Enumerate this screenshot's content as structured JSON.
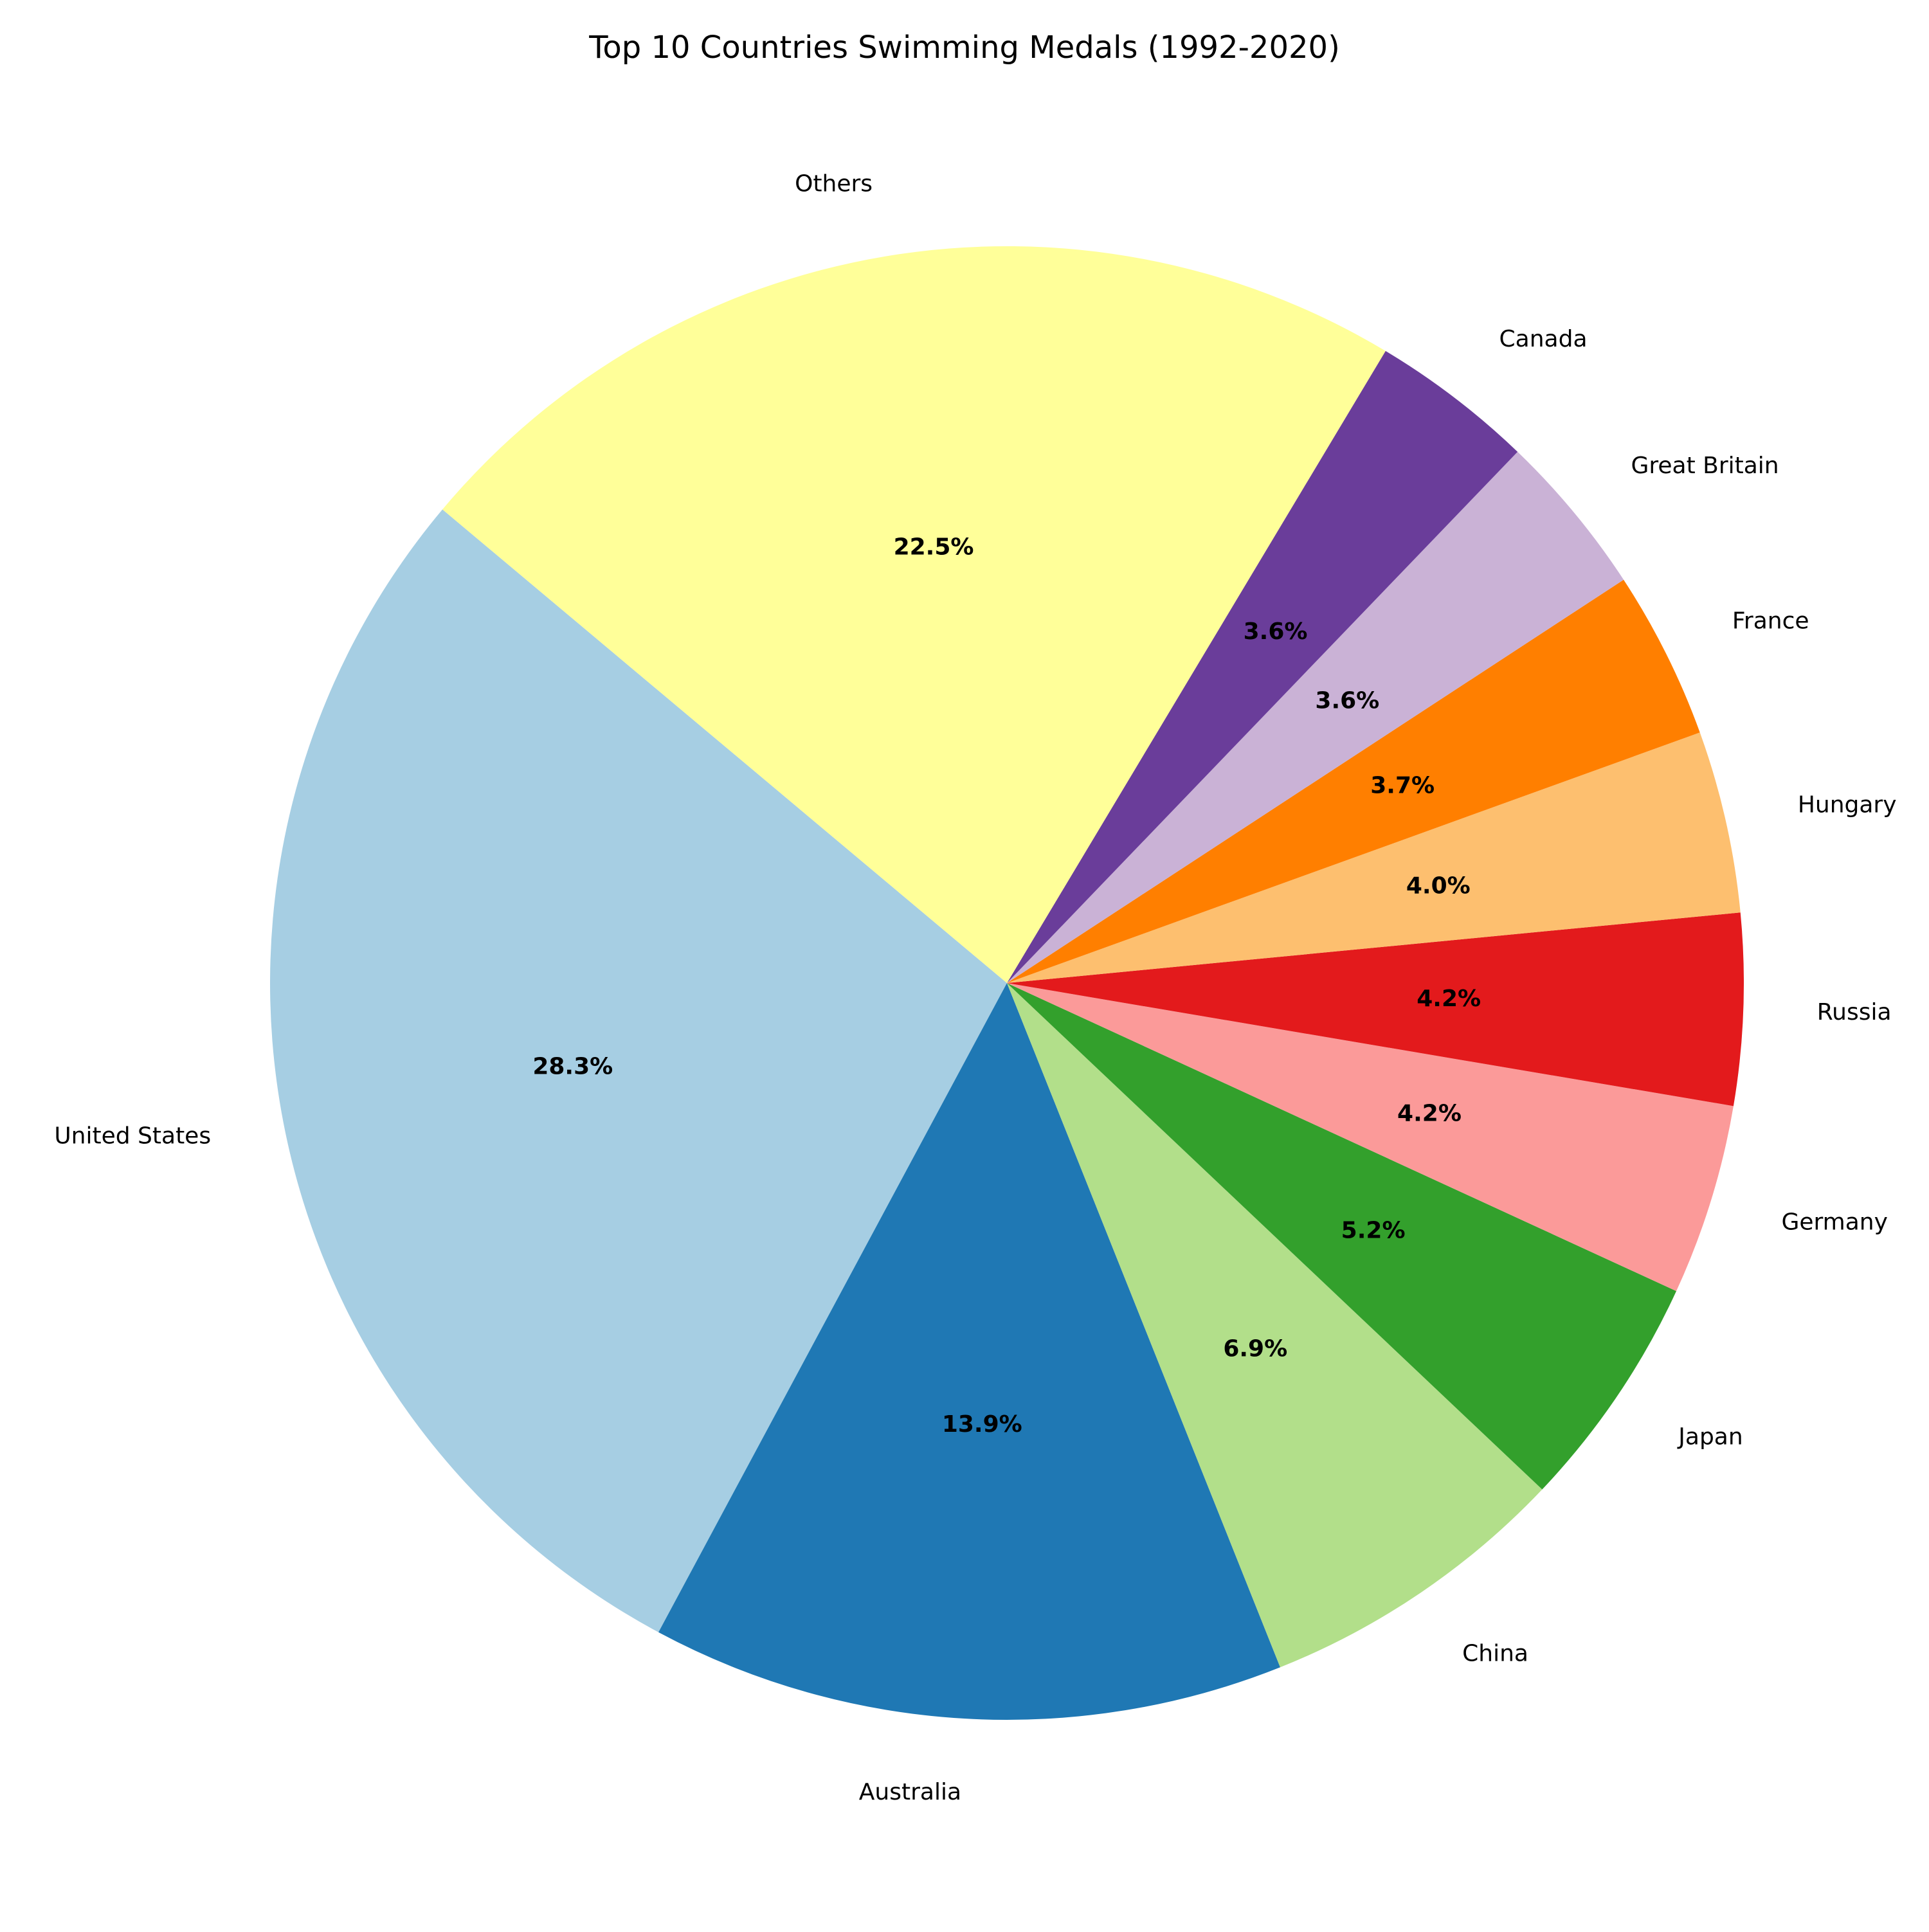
{
  "chart_data": {
    "type": "pie",
    "title": "Top 10 Countries Swimming Medals (1992-2020)",
    "start_angle_deg": 140,
    "direction": "counterclockwise",
    "slices": [
      {
        "label": "United States",
        "percent": 28.3,
        "pct_text": "28.3%",
        "color": "#a6cee3"
      },
      {
        "label": "Australia",
        "percent": 13.9,
        "pct_text": "13.9%",
        "color": "#1f78b4"
      },
      {
        "label": "China",
        "percent": 6.9,
        "pct_text": "6.9%",
        "color": "#b2df8a"
      },
      {
        "label": "Japan",
        "percent": 5.2,
        "pct_text": "5.2%",
        "color": "#33a02c"
      },
      {
        "label": "Germany",
        "percent": 4.2,
        "pct_text": "4.2%",
        "color": "#fb9a99"
      },
      {
        "label": "Russia",
        "percent": 4.2,
        "pct_text": "4.2%",
        "color": "#e31a1c"
      },
      {
        "label": "Hungary",
        "percent": 4.0,
        "pct_text": "4.0%",
        "color": "#fdbf6f"
      },
      {
        "label": "France",
        "percent": 3.7,
        "pct_text": "3.7%",
        "color": "#ff7f00"
      },
      {
        "label": "Great Britain",
        "percent": 3.6,
        "pct_text": "3.6%",
        "color": "#cab2d6"
      },
      {
        "label": "Canada",
        "percent": 3.6,
        "pct_text": "3.6%",
        "color": "#6a3d9a"
      },
      {
        "label": "Others",
        "percent": 22.5,
        "pct_text": "22.5%",
        "color": "#ffff99"
      }
    ]
  }
}
